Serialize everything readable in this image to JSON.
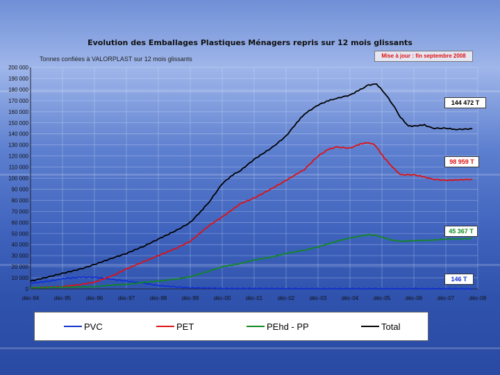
{
  "chart_data": {
    "type": "line",
    "title": "Evolution des Emballages Plastiques Ménagers repris sur 12 mois glissants",
    "subtitle": "Tonnes confiées à VALORPLAST sur 12 mois glissants",
    "update_note": "Mise à jour : fin septembre 2008",
    "xlabel": "",
    "ylabel": "",
    "x_ticks": [
      "déc-94",
      "déc-95",
      "déc-96",
      "déc-97",
      "déc-98",
      "déc-99",
      "déc-00",
      "déc-01",
      "déc-02",
      "déc-03",
      "déc-04",
      "déc-05",
      "déc-06",
      "déc-07",
      "déc-08"
    ],
    "y_ticks": [
      "0",
      "10 000",
      "20 000",
      "30 000",
      "40 000",
      "50 000",
      "60 000",
      "70 000",
      "80 000",
      "90 000",
      "100 000",
      "110 000",
      "120 000",
      "130 000",
      "140 000",
      "150 000",
      "160 000",
      "170 000",
      "180 000",
      "190 000",
      "200 000"
    ],
    "xlim": [
      1994.92,
      2008.92
    ],
    "ylim": [
      0,
      200000
    ],
    "grid": true,
    "legend_position": "bottom",
    "series": [
      {
        "name": "PVC",
        "color": "#1030d0",
        "points": [
          [
            1994.92,
            5000
          ],
          [
            1995.5,
            7000
          ],
          [
            1996.0,
            9500
          ],
          [
            1996.5,
            10500
          ],
          [
            1996.92,
            10500
          ],
          [
            1997.5,
            8500
          ],
          [
            1997.92,
            7000
          ],
          [
            1998.5,
            5000
          ],
          [
            1998.92,
            3000
          ],
          [
            1999.5,
            1800
          ],
          [
            1999.92,
            1000
          ],
          [
            2001.0,
            400
          ],
          [
            2003.0,
            250
          ],
          [
            2005.0,
            200
          ],
          [
            2007.0,
            160
          ],
          [
            2008.75,
            146
          ]
        ]
      },
      {
        "name": "PET",
        "color": "#e01010",
        "points": [
          [
            1994.92,
            1000
          ],
          [
            1995.92,
            2000
          ],
          [
            1996.5,
            4000
          ],
          [
            1996.92,
            6000
          ],
          [
            1997.5,
            12000
          ],
          [
            1997.92,
            18000
          ],
          [
            1998.5,
            25000
          ],
          [
            1998.92,
            30000
          ],
          [
            1999.5,
            37000
          ],
          [
            1999.92,
            43000
          ],
          [
            2000.5,
            57000
          ],
          [
            2000.92,
            65000
          ],
          [
            2001.5,
            77000
          ],
          [
            2001.92,
            82000
          ],
          [
            2002.5,
            91000
          ],
          [
            2002.92,
            98000
          ],
          [
            2003.5,
            108000
          ],
          [
            2003.92,
            120000
          ],
          [
            2004.25,
            126000
          ],
          [
            2004.5,
            128000
          ],
          [
            2004.92,
            127000
          ],
          [
            2005.25,
            131000
          ],
          [
            2005.5,
            132000
          ],
          [
            2005.7,
            130000
          ],
          [
            2006.0,
            118000
          ],
          [
            2006.25,
            110000
          ],
          [
            2006.5,
            103000
          ],
          [
            2006.92,
            103000
          ],
          [
            2007.25,
            101000
          ],
          [
            2007.5,
            99000
          ],
          [
            2007.92,
            98000
          ],
          [
            2008.75,
            98959
          ]
        ]
      },
      {
        "name": "PEhd - PP",
        "color": "#108820",
        "points": [
          [
            1994.92,
            1000
          ],
          [
            1996.92,
            2000
          ],
          [
            1997.5,
            3500
          ],
          [
            1997.92,
            4000
          ],
          [
            1998.5,
            6000
          ],
          [
            1998.92,
            7000
          ],
          [
            1999.5,
            9000
          ],
          [
            1999.92,
            11000
          ],
          [
            2000.5,
            16000
          ],
          [
            2000.92,
            20000
          ],
          [
            2001.5,
            23000
          ],
          [
            2001.92,
            26000
          ],
          [
            2002.5,
            29000
          ],
          [
            2002.92,
            32000
          ],
          [
            2003.5,
            35000
          ],
          [
            2003.92,
            38000
          ],
          [
            2004.5,
            43000
          ],
          [
            2004.92,
            46000
          ],
          [
            2005.5,
            49000
          ],
          [
            2005.75,
            48000
          ],
          [
            2006.25,
            44000
          ],
          [
            2006.5,
            43000
          ],
          [
            2006.92,
            43500
          ],
          [
            2007.5,
            44000
          ],
          [
            2007.92,
            45000
          ],
          [
            2008.75,
            45367
          ]
        ]
      },
      {
        "name": "Total",
        "color": "#000000",
        "points": [
          [
            1994.92,
            7000
          ],
          [
            1995.5,
            11000
          ],
          [
            1995.92,
            14000
          ],
          [
            1996.5,
            18000
          ],
          [
            1996.92,
            22000
          ],
          [
            1997.5,
            28000
          ],
          [
            1997.92,
            32000
          ],
          [
            1998.5,
            39000
          ],
          [
            1998.92,
            45000
          ],
          [
            1999.5,
            53000
          ],
          [
            1999.92,
            60000
          ],
          [
            2000.25,
            70000
          ],
          [
            2000.5,
            78000
          ],
          [
            2000.92,
            95000
          ],
          [
            2001.25,
            103000
          ],
          [
            2001.5,
            107000
          ],
          [
            2001.92,
            117000
          ],
          [
            2002.5,
            128000
          ],
          [
            2002.92,
            138000
          ],
          [
            2003.25,
            150000
          ],
          [
            2003.5,
            158000
          ],
          [
            2003.92,
            166000
          ],
          [
            2004.25,
            170000
          ],
          [
            2004.5,
            172000
          ],
          [
            2004.92,
            175000
          ],
          [
            2005.25,
            180000
          ],
          [
            2005.5,
            184000
          ],
          [
            2005.75,
            185000
          ],
          [
            2006.0,
            177000
          ],
          [
            2006.25,
            167000
          ],
          [
            2006.5,
            155000
          ],
          [
            2006.75,
            147000
          ],
          [
            2006.92,
            147000
          ],
          [
            2007.25,
            148000
          ],
          [
            2007.5,
            145000
          ],
          [
            2007.92,
            145000
          ],
          [
            2008.25,
            144000
          ],
          [
            2008.75,
            144472
          ]
        ]
      }
    ],
    "annotations": [
      {
        "label": "144 472 T",
        "series": "Total",
        "color": "#000000"
      },
      {
        "label": "98 959 T",
        "series": "PET",
        "color": "#e01010"
      },
      {
        "label": "45 367 T",
        "series": "PEhd - PP",
        "color": "#108820"
      },
      {
        "label": "146 T",
        "series": "PVC",
        "color": "#1030d0"
      }
    ]
  }
}
